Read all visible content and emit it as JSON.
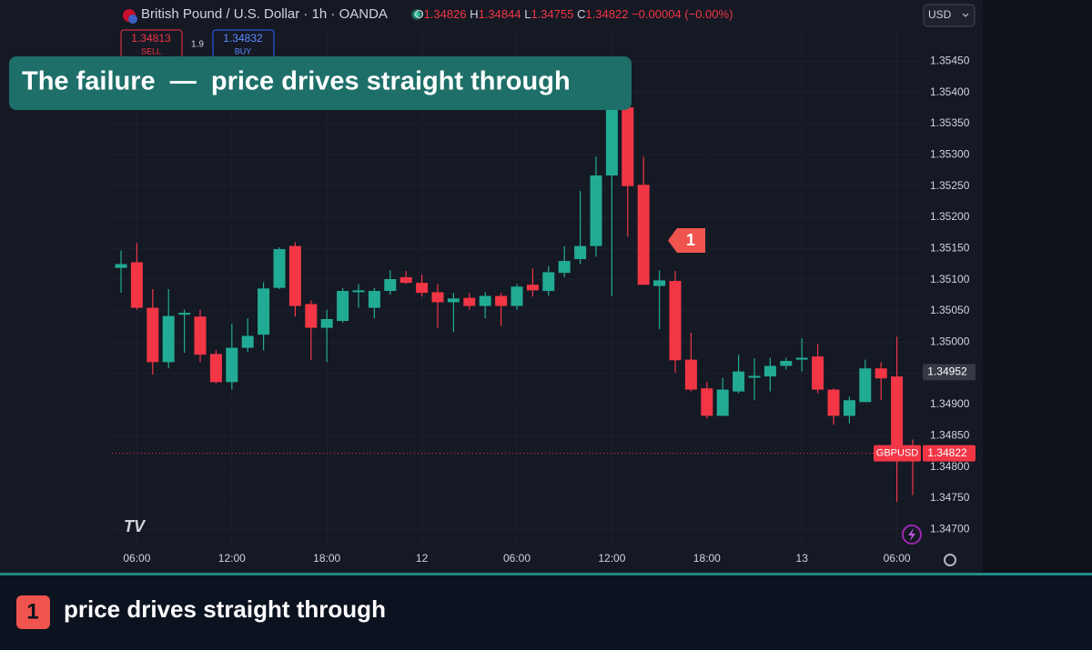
{
  "header": {
    "symbol": "British Pound / U.S. Dollar · 1h · OANDA",
    "o": "O",
    "h": "H",
    "l": "L",
    "c": "C",
    "change": "−0.00004 (−0.00%)",
    "currency": "USD"
  },
  "trade": {
    "sell_price": 1.34813,
    "sell": "SELL",
    "spread": 1.9,
    "buy_price": 1.34832,
    "buy": "BUY"
  },
  "banner": "The failure  —  price drives straight through",
  "annotation": {
    "number": "1",
    "text": "price drives straight through"
  },
  "price_tags": {
    "marker": 1.34952,
    "symbol": "GBPUSD"
  },
  "chart_data": {
    "type": "candlestick",
    "categories": [
      null,
      "06:00",
      null,
      null,
      null,
      null,
      null,
      "12:00",
      null,
      null,
      null,
      null,
      null,
      "18:00",
      null,
      null,
      null,
      null,
      null,
      "12",
      null,
      null,
      null,
      null,
      null,
      "06:00",
      null,
      null,
      null,
      null,
      null,
      "12:00",
      null,
      null,
      null,
      null,
      null,
      "18:00",
      null,
      null,
      null,
      null,
      null,
      "13",
      null,
      null,
      null,
      null,
      null,
      "06:00",
      null
    ],
    "open": [
      1.35119,
      1.35128,
      1.35055,
      1.34968,
      1.35044,
      1.35041,
      1.34981,
      1.34936,
      1.34991,
      1.35012,
      1.35087,
      1.35154,
      1.35061,
      1.35023,
      1.35034,
      1.3508,
      1.35055,
      1.35082,
      1.35104,
      1.35095,
      1.3508,
      1.35064,
      1.35071,
      1.35058,
      1.35074,
      1.35058,
      1.35092,
      1.35082,
      1.35111,
      1.35133,
      1.35154,
      1.35267,
      1.35376,
      1.35252,
      1.3509,
      1.35098,
      1.34972,
      1.34926,
      1.34882,
      1.34921,
      1.34943,
      1.34945,
      1.34962,
      1.34972,
      1.34977,
      1.34924,
      1.34882,
      1.34904,
      1.34958,
      1.34945,
      1.34826
    ],
    "high": [
      1.35147,
      1.35159,
      1.35085,
      1.35085,
      1.35052,
      1.35052,
      1.34987,
      1.35029,
      1.35038,
      1.35096,
      1.35152,
      1.3516,
      1.35067,
      1.35052,
      1.35087,
      1.35093,
      1.35087,
      1.35115,
      1.35114,
      1.35108,
      1.35093,
      1.35079,
      1.35079,
      1.3508,
      1.35079,
      1.35093,
      1.35118,
      1.35122,
      1.35154,
      1.35242,
      1.35297,
      1.35395,
      1.35377,
      1.35297,
      1.35115,
      1.35114,
      1.35015,
      1.34936,
      1.34943,
      1.3498,
      1.34974,
      1.34975,
      1.34975,
      1.35006,
      1.34997,
      1.34926,
      1.34913,
      1.34972,
      1.34968,
      1.35009,
      1.34844
    ],
    "low": [
      1.35079,
      1.35052,
      1.34948,
      1.34958,
      1.34983,
      1.34968,
      1.34934,
      1.34924,
      1.34984,
      1.34987,
      1.35085,
      1.35041,
      1.34971,
      1.34968,
      1.35031,
      1.35055,
      1.35038,
      1.35076,
      1.35093,
      1.35073,
      1.35023,
      1.35016,
      1.35052,
      1.35038,
      1.35026,
      1.35052,
      1.35073,
      1.35074,
      1.35104,
      1.35125,
      1.35137,
      1.35074,
      1.35169,
      1.35092,
      1.35021,
      1.34951,
      1.34921,
      1.34878,
      1.34882,
      1.34918,
      1.34907,
      1.34921,
      1.34956,
      1.34953,
      1.34918,
      1.34868,
      1.3487,
      1.34904,
      1.34907,
      1.34744,
      1.34755
    ],
    "close": [
      1.35125,
      1.35055,
      1.34968,
      1.35042,
      1.35047,
      1.3498,
      1.34936,
      1.34991,
      1.3501,
      1.35086,
      1.35149,
      1.35058,
      1.35023,
      1.35037,
      1.35082,
      1.35083,
      1.35082,
      1.35101,
      1.35095,
      1.35079,
      1.35064,
      1.3507,
      1.35058,
      1.35074,
      1.35058,
      1.35089,
      1.35083,
      1.35112,
      1.3513,
      1.35154,
      1.35267,
      1.35376,
      1.3525,
      1.35092,
      1.35099,
      1.34971,
      1.34924,
      1.34882,
      1.34924,
      1.34953,
      1.34946,
      1.34962,
      1.3497,
      1.34975,
      1.34924,
      1.34882,
      1.34907,
      1.34958,
      1.34942,
      1.34826,
      1.34822
    ],
    "up_color": "#22ab94",
    "down_color": "#f23645",
    "ylim": [
      1.3467,
      1.355
    ],
    "yticks": [
      {
        "value": 1.347,
        "label": "1.34700"
      },
      {
        "value": 1.3475,
        "label": "1.34750"
      },
      {
        "value": 1.348,
        "label": "1.34800"
      },
      {
        "value": 1.3485,
        "label": "1.34850"
      },
      {
        "value": 1.349,
        "label": "1.34900"
      },
      {
        "value": 1.3495,
        "label": "1.34950"
      },
      {
        "value": 1.35,
        "label": "1.35000"
      },
      {
        "value": 1.3505,
        "label": "1.35050"
      },
      {
        "value": 1.351,
        "label": "1.35100"
      },
      {
        "value": 1.3515,
        "label": "1.35150"
      },
      {
        "value": 1.352,
        "label": "1.35200"
      },
      {
        "value": 1.3525,
        "label": "1.35250"
      },
      {
        "value": 1.353,
        "label": "1.35300"
      },
      {
        "value": 1.3535,
        "label": "1.35350"
      },
      {
        "value": 1.354,
        "label": "1.35400"
      },
      {
        "value": 1.3545,
        "label": "1.35450"
      }
    ],
    "grid": true
  }
}
